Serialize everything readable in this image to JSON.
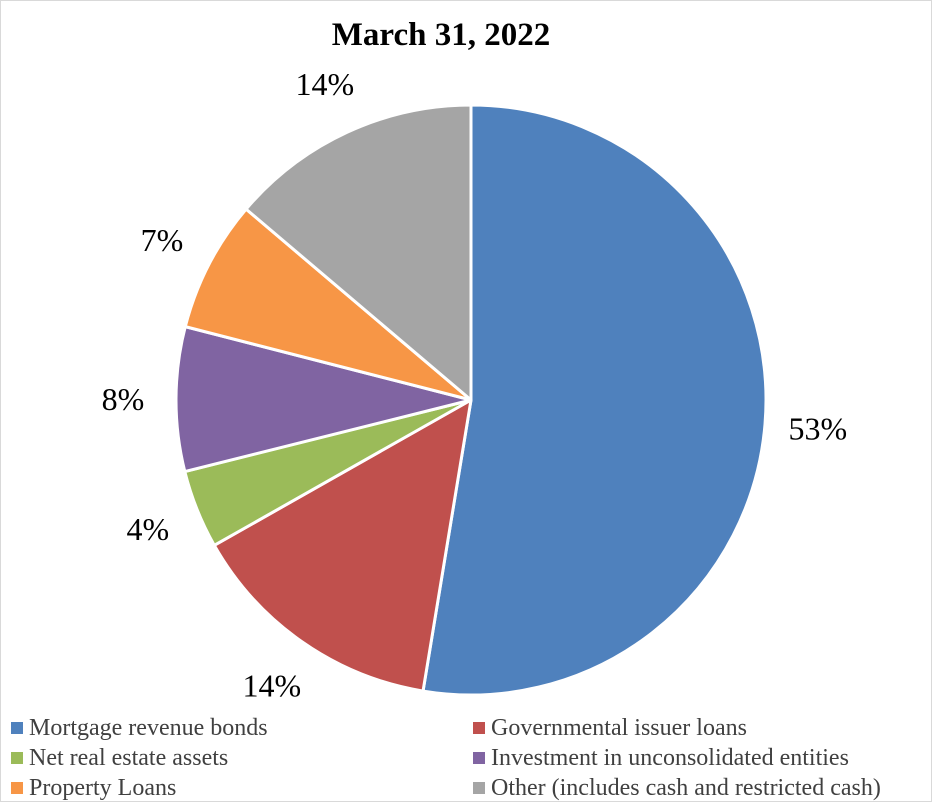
{
  "chart_data": {
    "type": "pie",
    "title": "March 31, 2022",
    "slices": [
      {
        "label": "Mortgage revenue bonds",
        "value": 52.6,
        "display": "53%",
        "color": "#4F81BD"
      },
      {
        "label": "Governmental issuer loans",
        "value": 14.2,
        "display": "14%",
        "color": "#C0504D"
      },
      {
        "label": "Net real estate assets",
        "value": 4.3,
        "display": "4%",
        "color": "#9BBB59"
      },
      {
        "label": "Investment in unconsolidated entities",
        "value": 7.9,
        "display": "8%",
        "color": "#8064A2"
      },
      {
        "label": "Property Loans",
        "value": 7.2,
        "display": "7%",
        "color": "#F79646"
      },
      {
        "label": "Other (includes cash and restricted cash)",
        "value": 13.8,
        "display": "14%",
        "color": "#A5A5A5"
      }
    ],
    "legend_position": "bottom"
  }
}
